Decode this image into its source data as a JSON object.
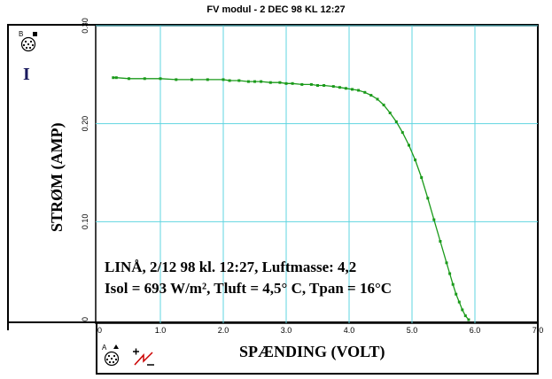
{
  "window": {
    "title": "FV modul - 2 DEC 98 KL 12:27"
  },
  "icons": {
    "top_connector": {
      "label": "B",
      "name": "connector-b-icon"
    },
    "bottom_connector": {
      "label": "A",
      "name": "connector-a-icon"
    },
    "sign_toggle": {
      "name": "polarity-toggle-icon"
    }
  },
  "chart_data": {
    "type": "line",
    "title": "",
    "xlabel": "SPÆNDING (VOLT)",
    "ylabel": "STRØM (AMP)",
    "y_variable": "I",
    "xlim": [
      0,
      7.0
    ],
    "ylim": [
      0,
      0.3
    ],
    "x_ticks": [
      "0",
      "1.0",
      "2.0",
      "3.0",
      "4.0",
      "5.0",
      "6.0",
      "7.0"
    ],
    "x_tick_values": [
      0,
      1,
      2,
      3,
      4,
      5,
      6,
      7
    ],
    "y_ticks": [
      "0",
      "0.10",
      "0.20",
      "0.30"
    ],
    "y_tick_values": [
      0,
      0.1,
      0.2,
      0.3
    ],
    "grid": true,
    "annotations": [
      "LINÅ, 2/12 98 kl. 12:27, Luftmasse: 4,2",
      "Isol = 693 W/m², Tluft = 4,5° C, Tpan = 16°C"
    ],
    "series": [
      {
        "color": "#1a9a1a",
        "x": [
          0.25,
          0.3,
          0.5,
          0.75,
          1.0,
          1.25,
          1.5,
          1.75,
          2.0,
          2.1,
          2.25,
          2.4,
          2.5,
          2.6,
          2.75,
          2.9,
          3.0,
          3.1,
          3.25,
          3.4,
          3.5,
          3.6,
          3.75,
          3.85,
          3.95,
          4.05,
          4.15,
          4.25,
          4.35,
          4.45,
          4.55,
          4.65,
          4.75,
          4.85,
          4.95,
          5.05,
          5.15,
          5.25,
          5.35,
          5.45,
          5.55,
          5.6,
          5.65,
          5.7,
          5.75,
          5.8,
          5.85,
          5.9
        ],
        "y": [
          0.247,
          0.247,
          0.246,
          0.246,
          0.246,
          0.245,
          0.245,
          0.245,
          0.245,
          0.244,
          0.244,
          0.243,
          0.243,
          0.243,
          0.242,
          0.242,
          0.241,
          0.241,
          0.24,
          0.24,
          0.239,
          0.239,
          0.238,
          0.237,
          0.236,
          0.235,
          0.234,
          0.232,
          0.229,
          0.225,
          0.219,
          0.211,
          0.202,
          0.191,
          0.178,
          0.163,
          0.145,
          0.124,
          0.102,
          0.08,
          0.058,
          0.047,
          0.036,
          0.026,
          0.018,
          0.01,
          0.004,
          0.0
        ]
      }
    ]
  }
}
